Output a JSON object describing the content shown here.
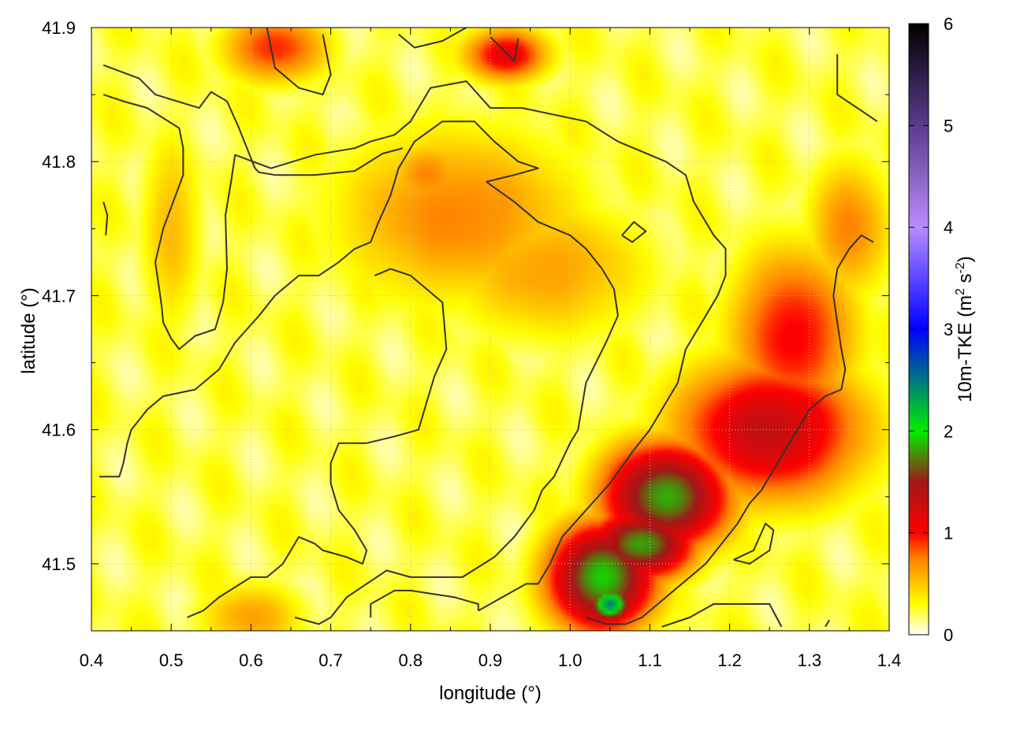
{
  "chart_data": {
    "type": "heatmap",
    "title": "",
    "xlabel": "longitude (°)",
    "ylabel": "latitude (°)",
    "xlim": [
      0.4,
      1.4
    ],
    "ylim": [
      41.45,
      41.9
    ],
    "x_ticks": [
      "0.4",
      "0.5",
      "0.6",
      "0.7",
      "0.8",
      "0.9",
      "1.0",
      "1.1",
      "1.2",
      "1.3",
      "1.4"
    ],
    "y_ticks": [
      "41.5",
      "41.6",
      "41.7",
      "41.8",
      "41.9"
    ],
    "grid": true,
    "colorbar": {
      "label_main": "10m-TKE (m",
      "label_sup1": "2",
      "label_mid": " s",
      "label_sup2": "-2",
      "label_end": ")",
      "range": [
        0,
        6
      ],
      "ticks": [
        "0",
        "1",
        "2",
        "3",
        "4",
        "5",
        "6"
      ],
      "stops": [
        {
          "value": 0.0,
          "color": "#ffffff"
        },
        {
          "value": 0.3,
          "color": "#ffff00"
        },
        {
          "value": 0.75,
          "color": "#ff8000"
        },
        {
          "value": 1.0,
          "color": "#ff0000"
        },
        {
          "value": 1.5,
          "color": "#a01818"
        },
        {
          "value": 2.0,
          "color": "#00ee00"
        },
        {
          "value": 3.0,
          "color": "#0000ff"
        },
        {
          "value": 4.0,
          "color": "#b88cff"
        },
        {
          "value": 5.0,
          "color": "#5a3c8c"
        },
        {
          "value": 6.0,
          "color": "#000000"
        }
      ]
    },
    "field_features": [
      {
        "lon": 0.63,
        "lat": 41.885,
        "tke": 0.9,
        "sx": 0.05,
        "sy": 0.02
      },
      {
        "lon": 0.92,
        "lat": 41.88,
        "tke": 1.1,
        "sx": 0.04,
        "sy": 0.015
      },
      {
        "lon": 0.86,
        "lat": 41.76,
        "tke": 0.7,
        "sx": 0.12,
        "sy": 0.05
      },
      {
        "lon": 0.82,
        "lat": 41.79,
        "tke": 0.7,
        "sx": 0.04,
        "sy": 0.02
      },
      {
        "lon": 0.97,
        "lat": 41.72,
        "tke": 0.6,
        "sx": 0.1,
        "sy": 0.04
      },
      {
        "lon": 1.25,
        "lat": 41.6,
        "tke": 1.3,
        "sx": 0.09,
        "sy": 0.04
      },
      {
        "lon": 1.28,
        "lat": 41.67,
        "tke": 1.0,
        "sx": 0.06,
        "sy": 0.05
      },
      {
        "lon": 1.12,
        "lat": 41.55,
        "tke": 1.8,
        "sx": 0.06,
        "sy": 0.03
      },
      {
        "lon": 1.04,
        "lat": 41.49,
        "tke": 1.9,
        "sx": 0.05,
        "sy": 0.03
      },
      {
        "lon": 1.05,
        "lat": 41.47,
        "tke": 2.4,
        "sx": 0.02,
        "sy": 0.01
      },
      {
        "lon": 1.09,
        "lat": 41.515,
        "tke": 1.8,
        "sx": 0.05,
        "sy": 0.02
      },
      {
        "lon": 0.5,
        "lat": 41.75,
        "tke": 0.5,
        "sx": 0.03,
        "sy": 0.06
      },
      {
        "lon": 0.6,
        "lat": 41.46,
        "tke": 0.6,
        "sx": 0.05,
        "sy": 0.02
      },
      {
        "lon": 1.35,
        "lat": 41.75,
        "tke": 0.7,
        "sx": 0.04,
        "sy": 0.04
      }
    ],
    "contours": [
      [
        [
          0.415,
          41.872
        ],
        [
          0.46,
          41.862
        ],
        [
          0.48,
          41.85
        ],
        [
          0.535,
          41.84
        ],
        [
          0.55,
          41.852
        ],
        [
          0.57,
          41.845
        ],
        [
          0.585,
          41.825
        ],
        [
          0.605,
          41.795
        ],
        [
          0.61,
          41.792
        ],
        [
          0.63,
          41.79
        ],
        [
          0.68,
          41.79
        ],
        [
          0.73,
          41.793
        ],
        [
          0.765,
          41.806
        ],
        [
          0.79,
          41.81
        ]
      ],
      [
        [
          0.415,
          41.85
        ],
        [
          0.44,
          41.845
        ],
        [
          0.47,
          41.84
        ],
        [
          0.51,
          41.825
        ],
        [
          0.515,
          41.81
        ],
        [
          0.515,
          41.79
        ],
        [
          0.49,
          41.75
        ],
        [
          0.48,
          41.725
        ],
        [
          0.485,
          41.705
        ],
        [
          0.488,
          41.692
        ],
        [
          0.49,
          41.68
        ],
        [
          0.5,
          41.668
        ],
        [
          0.51,
          41.66
        ],
        [
          0.53,
          41.67
        ],
        [
          0.555,
          41.675
        ],
        [
          0.565,
          41.695
        ],
        [
          0.57,
          41.72
        ],
        [
          0.568,
          41.76
        ],
        [
          0.575,
          41.785
        ],
        [
          0.58,
          41.805
        ],
        [
          0.625,
          41.795
        ],
        [
          0.68,
          41.805
        ],
        [
          0.73,
          41.81
        ],
        [
          0.75,
          41.815
        ],
        [
          0.78,
          41.82
        ],
        [
          0.8,
          41.83
        ],
        [
          0.825,
          41.855
        ],
        [
          0.87,
          41.86
        ],
        [
          0.9,
          41.84
        ],
        [
          0.94,
          41.84
        ],
        [
          1.02,
          41.83
        ],
        [
          1.06,
          41.815
        ],
        [
          1.12,
          41.8
        ],
        [
          1.145,
          41.79
        ],
        [
          1.155,
          41.77
        ],
        [
          1.18,
          41.745
        ],
        [
          1.195,
          41.735
        ],
        [
          1.195,
          41.715
        ],
        [
          1.185,
          41.7
        ],
        [
          1.165,
          41.68
        ],
        [
          1.145,
          41.66
        ],
        [
          1.135,
          41.635
        ],
        [
          1.12,
          41.62
        ],
        [
          1.1,
          41.6
        ],
        [
          1.08,
          41.585
        ],
        [
          1.05,
          41.56
        ],
        [
          1.02,
          41.54
        ],
        [
          0.99,
          41.52
        ],
        [
          0.975,
          41.5
        ],
        [
          0.96,
          41.485
        ],
        [
          0.945,
          41.485
        ],
        [
          0.915,
          41.475
        ],
        [
          0.885,
          41.465
        ]
      ],
      [
        [
          0.62,
          41.9
        ],
        [
          0.63,
          41.87
        ],
        [
          0.66,
          41.855
        ],
        [
          0.69,
          41.85
        ],
        [
          0.7,
          41.865
        ],
        [
          0.695,
          41.88
        ],
        [
          0.69,
          41.895
        ]
      ],
      [
        [
          0.885,
          41.465
        ],
        [
          0.885,
          41.47
        ],
        [
          0.855,
          41.475
        ],
        [
          0.8,
          41.48
        ],
        [
          0.78,
          41.48
        ],
        [
          0.75,
          41.47
        ],
        [
          0.75,
          41.46
        ]
      ],
      [
        [
          0.785,
          41.895
        ],
        [
          0.805,
          41.885
        ],
        [
          0.84,
          41.89
        ],
        [
          0.87,
          41.9
        ]
      ],
      [
        [
          0.9,
          41.893
        ],
        [
          0.93,
          41.875
        ],
        [
          0.935,
          41.892
        ]
      ],
      [
        [
          0.895,
          41.785
        ],
        [
          0.93,
          41.79
        ],
        [
          0.96,
          41.795
        ],
        [
          0.935,
          41.8
        ],
        [
          0.905,
          41.815
        ],
        [
          0.88,
          41.83
        ],
        [
          0.84,
          41.83
        ],
        [
          0.805,
          41.815
        ],
        [
          0.785,
          41.795
        ],
        [
          0.775,
          41.775
        ],
        [
          0.76,
          41.755
        ],
        [
          0.75,
          41.74
        ],
        [
          0.73,
          41.735
        ],
        [
          0.71,
          41.725
        ],
        [
          0.685,
          41.715
        ],
        [
          0.66,
          41.715
        ],
        [
          0.63,
          41.7
        ],
        [
          0.61,
          41.685
        ],
        [
          0.58,
          41.665
        ],
        [
          0.56,
          41.645
        ],
        [
          0.53,
          41.63
        ],
        [
          0.49,
          41.625
        ],
        [
          0.47,
          41.615
        ],
        [
          0.45,
          41.6
        ],
        [
          0.445,
          41.59
        ],
        [
          0.44,
          41.575
        ],
        [
          0.435,
          41.565
        ],
        [
          0.41,
          41.565
        ]
      ],
      [
        [
          0.895,
          41.785
        ],
        [
          0.93,
          41.77
        ],
        [
          0.96,
          41.755
        ],
        [
          1.0,
          41.745
        ],
        [
          1.02,
          41.735
        ],
        [
          1.04,
          41.72
        ],
        [
          1.055,
          41.705
        ],
        [
          1.06,
          41.685
        ],
        [
          1.045,
          41.665
        ],
        [
          1.02,
          41.635
        ],
        [
          1.01,
          41.6
        ],
        [
          1.0,
          41.59
        ],
        [
          0.98,
          41.565
        ],
        [
          0.965,
          41.555
        ],
        [
          0.955,
          41.54
        ],
        [
          0.93,
          41.52
        ],
        [
          0.905,
          41.505
        ],
        [
          0.865,
          41.49
        ],
        [
          0.84,
          41.49
        ],
        [
          0.8,
          41.49
        ],
        [
          0.77,
          41.495
        ],
        [
          0.745,
          41.485
        ],
        [
          0.72,
          41.475
        ],
        [
          0.7,
          41.46
        ],
        [
          0.685,
          41.455
        ],
        [
          0.655,
          41.46
        ]
      ],
      [
        [
          0.755,
          41.715
        ],
        [
          0.775,
          41.72
        ],
        [
          0.8,
          41.715
        ],
        [
          0.84,
          41.695
        ],
        [
          0.845,
          41.66
        ],
        [
          0.83,
          41.64
        ],
        [
          0.82,
          41.62
        ],
        [
          0.81,
          41.6
        ],
        [
          0.78,
          41.595
        ],
        [
          0.745,
          41.59
        ],
        [
          0.71,
          41.59
        ],
        [
          0.7,
          41.575
        ],
        [
          0.7,
          41.56
        ],
        [
          0.71,
          41.54
        ],
        [
          0.73,
          41.525
        ],
        [
          0.745,
          41.51
        ],
        [
          0.74,
          41.5
        ],
        [
          0.72,
          41.505
        ],
        [
          0.69,
          41.51
        ],
        [
          0.68,
          41.515
        ],
        [
          0.66,
          41.52
        ],
        [
          0.64,
          41.5
        ],
        [
          0.62,
          41.49
        ],
        [
          0.6,
          41.49
        ],
        [
          0.56,
          41.475
        ],
        [
          0.54,
          41.465
        ],
        [
          0.52,
          41.46
        ]
      ],
      [
        [
          1.115,
          41.453
        ],
        [
          1.15,
          41.46
        ],
        [
          1.18,
          41.47
        ],
        [
          1.25,
          41.47
        ],
        [
          1.265,
          41.453
        ]
      ],
      [
        [
          1.205,
          41.503
        ],
        [
          1.225,
          41.5
        ],
        [
          1.25,
          41.51
        ],
        [
          1.255,
          41.525
        ],
        [
          1.245,
          41.53
        ],
        [
          1.23,
          41.51
        ],
        [
          1.205,
          41.503
        ]
      ],
      [
        [
          1.065,
          41.745
        ],
        [
          1.08,
          41.755
        ],
        [
          1.095,
          41.748
        ],
        [
          1.078,
          41.74
        ],
        [
          1.065,
          41.745
        ]
      ],
      [
        [
          1.38,
          41.74
        ],
        [
          1.365,
          41.745
        ],
        [
          1.35,
          41.735
        ],
        [
          1.335,
          41.72
        ],
        [
          1.33,
          41.7
        ],
        [
          1.335,
          41.68
        ],
        [
          1.34,
          41.66
        ],
        [
          1.345,
          41.645
        ],
        [
          1.34,
          41.63
        ],
        [
          1.32,
          41.625
        ],
        [
          1.3,
          41.615
        ],
        [
          1.285,
          41.6
        ],
        [
          1.27,
          41.585
        ],
        [
          1.255,
          41.57
        ],
        [
          1.24,
          41.555
        ],
        [
          1.225,
          41.545
        ],
        [
          1.21,
          41.53
        ],
        [
          1.19,
          41.515
        ],
        [
          1.17,
          41.5
        ],
        [
          1.15,
          41.49
        ],
        [
          1.13,
          41.48
        ],
        [
          1.11,
          41.47
        ],
        [
          1.09,
          41.46
        ],
        [
          1.07,
          41.455
        ],
        [
          1.045,
          41.455
        ],
        [
          1.02,
          41.46
        ]
      ],
      [
        [
          1.335,
          41.88
        ],
        [
          1.335,
          41.85
        ],
        [
          1.36,
          41.84
        ],
        [
          1.385,
          41.83
        ]
      ],
      [
        [
          0.415,
          41.77
        ],
        [
          0.42,
          41.76
        ],
        [
          0.418,
          41.745
        ]
      ],
      [
        [
          1.32,
          41.453
        ],
        [
          1.325,
          41.458
        ]
      ]
    ]
  }
}
